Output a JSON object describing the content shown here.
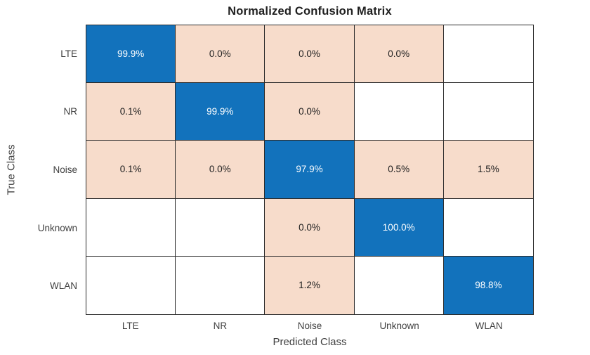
{
  "chart_data": {
    "type": "heatmap",
    "title": "Normalized Confusion Matrix",
    "xlabel": "Predicted Class",
    "ylabel": "True Class",
    "categories": [
      "LTE",
      "NR",
      "Noise",
      "Unknown",
      "WLAN"
    ],
    "rows": [
      {
        "true_class": "LTE",
        "values": [
          "99.9%",
          "0.0%",
          "0.0%",
          "0.0%",
          ""
        ]
      },
      {
        "true_class": "NR",
        "values": [
          "0.1%",
          "99.9%",
          "0.0%",
          "",
          ""
        ]
      },
      {
        "true_class": "Noise",
        "values": [
          "0.1%",
          "0.0%",
          "97.9%",
          "0.5%",
          "1.5%"
        ]
      },
      {
        "true_class": "Unknown",
        "values": [
          "",
          "",
          "0.0%",
          "100.0%",
          ""
        ]
      },
      {
        "true_class": "WLAN",
        "values": [
          "",
          "",
          "1.2%",
          "",
          "98.8%"
        ]
      }
    ],
    "matrix_numeric": [
      [
        99.9,
        0.0,
        0.0,
        0.0,
        null
      ],
      [
        0.1,
        99.9,
        0.0,
        null,
        null
      ],
      [
        0.1,
        0.0,
        97.9,
        0.5,
        1.5
      ],
      [
        null,
        null,
        0.0,
        100.0,
        null
      ],
      [
        null,
        null,
        1.2,
        null,
        98.8
      ]
    ],
    "legend": "none",
    "grid": "cell-borders",
    "colors": {
      "diagonal": "#1272BC",
      "off_diagonal": "#F7DCCB",
      "empty": "#FFFFFF",
      "grid_line": "#2B2B2B",
      "diagonal_text": "#FFFFFF",
      "cell_text": "#202020",
      "tick_text": "#3F3F3F",
      "title_text": "#1F1F1F"
    }
  }
}
